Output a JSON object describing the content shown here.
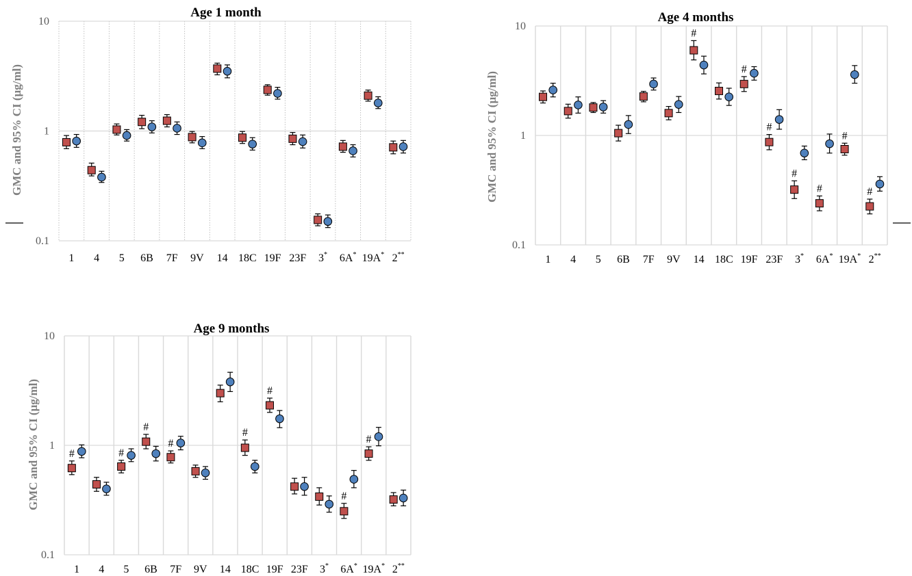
{
  "colors": {
    "red_marker": "#c0504d",
    "blue_marker": "#4f81bd",
    "grid": "#d9d9d9",
    "axis_text": "#595959",
    "ylabel": "#7f7f7f"
  },
  "chart_data": [
    {
      "type": "scatter",
      "title": "Age 1 month",
      "ylabel": "GMC and 95% CI (µg/ml)",
      "yscale": "log",
      "ylim": [
        0.1,
        10
      ],
      "yticks": [
        "0.1",
        "1",
        "10"
      ],
      "vgrid": "dotted",
      "categories": [
        "1",
        "4",
        "5",
        "6B",
        "7F",
        "9V",
        "14",
        "18C",
        "19F",
        "23F",
        "3",
        "6A",
        "19A",
        "2"
      ],
      "category_sup": [
        "",
        "",
        "",
        "",
        "",
        "",
        "",
        "",
        "",
        "",
        "*",
        "*",
        "*",
        "**"
      ],
      "series": [
        {
          "color": "red",
          "marker": "square",
          "values": [
            0.79,
            0.44,
            1.03,
            1.21,
            1.24,
            0.88,
            3.7,
            0.87,
            2.37,
            0.85,
            0.155,
            0.72,
            2.1,
            0.71
          ],
          "ci_low": [
            0.69,
            0.39,
            0.92,
            1.05,
            1.09,
            0.78,
            3.25,
            0.77,
            2.12,
            0.75,
            0.137,
            0.64,
            1.87,
            0.62
          ],
          "ci_high": [
            0.91,
            0.51,
            1.16,
            1.39,
            1.41,
            0.99,
            4.15,
            0.99,
            2.64,
            0.97,
            0.176,
            0.82,
            2.36,
            0.81
          ]
        },
        {
          "color": "blue",
          "marker": "circle",
          "values": [
            0.81,
            0.38,
            0.91,
            1.09,
            1.06,
            0.78,
            3.5,
            0.76,
            2.2,
            0.8,
            0.15,
            0.66,
            1.8,
            0.72
          ],
          "ci_low": [
            0.71,
            0.34,
            0.81,
            0.96,
            0.93,
            0.69,
            3.05,
            0.67,
            1.95,
            0.7,
            0.132,
            0.58,
            1.6,
            0.63
          ],
          "ci_high": [
            0.93,
            0.43,
            1.03,
            1.24,
            1.21,
            0.89,
            4.0,
            0.87,
            2.5,
            0.92,
            0.172,
            0.75,
            2.05,
            0.82
          ]
        }
      ],
      "annotations": []
    },
    {
      "type": "scatter",
      "title": "Age 4 months",
      "ylabel": "GMC and 95% CI (µg/ml)",
      "yscale": "log",
      "ylim": [
        0.1,
        10
      ],
      "yticks": [
        "0.1",
        "1",
        "10"
      ],
      "vgrid": "solid",
      "categories": [
        "1",
        "4",
        "5",
        "6B",
        "7F",
        "9V",
        "14",
        "18C",
        "19F",
        "23F",
        "3",
        "6A",
        "19A",
        "2"
      ],
      "category_sup": [
        "",
        "",
        "",
        "",
        "",
        "",
        "",
        "",
        "",
        "",
        "*",
        "*",
        "*",
        "**"
      ],
      "series": [
        {
          "color": "red",
          "marker": "square",
          "values": [
            2.25,
            1.67,
            1.8,
            1.05,
            2.27,
            1.6,
            6.0,
            2.55,
            2.95,
            0.87,
            0.32,
            0.24,
            0.75,
            0.225
          ],
          "ci_low": [
            1.98,
            1.44,
            1.62,
            0.89,
            2.03,
            1.39,
            4.9,
            2.15,
            2.52,
            0.74,
            0.265,
            0.205,
            0.66,
            0.192
          ],
          "ci_high": [
            2.55,
            1.93,
            2.0,
            1.24,
            2.53,
            1.84,
            7.35,
            3.02,
            3.45,
            1.02,
            0.385,
            0.28,
            0.85,
            0.262
          ]
        },
        {
          "color": "blue",
          "marker": "circle",
          "values": [
            2.6,
            1.9,
            1.82,
            1.26,
            2.95,
            1.92,
            4.4,
            2.25,
            3.7,
            1.4,
            0.69,
            0.84,
            3.6,
            0.36
          ],
          "ci_low": [
            2.25,
            1.6,
            1.6,
            1.04,
            2.6,
            1.62,
            3.65,
            1.88,
            3.2,
            1.14,
            0.6,
            0.69,
            3.0,
            0.31
          ],
          "ci_high": [
            3.0,
            2.25,
            2.08,
            1.52,
            3.35,
            2.27,
            5.3,
            2.7,
            4.25,
            1.72,
            0.8,
            1.03,
            4.35,
            0.42
          ]
        }
      ],
      "annotations": [
        {
          "category": "14",
          "text": "#"
        },
        {
          "category": "19F",
          "text": "#"
        },
        {
          "category": "23F",
          "text": "#"
        },
        {
          "category": "3",
          "text": "#"
        },
        {
          "category": "6A",
          "text": "#"
        },
        {
          "category": "19A",
          "text": "#"
        },
        {
          "category": "2",
          "text": "#"
        }
      ]
    },
    {
      "type": "scatter",
      "title": "Age 9 months",
      "ylabel": "GMC and 95% CI (µg/ml)",
      "yscale": "log",
      "ylim": [
        0.1,
        10
      ],
      "yticks": [
        "0.1",
        "1",
        "10"
      ],
      "vgrid": "solid",
      "categories": [
        "1",
        "4",
        "5",
        "6B",
        "7F",
        "9V",
        "14",
        "18C",
        "19F",
        "23F",
        "3",
        "6A",
        "19A",
        "2"
      ],
      "category_sup": [
        "",
        "",
        "",
        "",
        "",
        "",
        "",
        "",
        "",
        "",
        "*",
        "*",
        "*",
        "**"
      ],
      "series": [
        {
          "color": "red",
          "marker": "square",
          "values": [
            0.62,
            0.44,
            0.64,
            1.08,
            0.78,
            0.58,
            3.0,
            0.95,
            2.32,
            0.42,
            0.34,
            0.25,
            0.84,
            0.32
          ],
          "ci_low": [
            0.54,
            0.38,
            0.56,
            0.93,
            0.69,
            0.51,
            2.5,
            0.81,
            2.0,
            0.36,
            0.285,
            0.215,
            0.73,
            0.28
          ],
          "ci_high": [
            0.72,
            0.51,
            0.73,
            1.26,
            0.89,
            0.66,
            3.55,
            1.12,
            2.7,
            0.5,
            0.41,
            0.295,
            0.97,
            0.37
          ]
        },
        {
          "color": "blue",
          "marker": "circle",
          "values": [
            0.88,
            0.4,
            0.81,
            0.84,
            1.05,
            0.56,
            3.8,
            0.64,
            1.75,
            0.42,
            0.29,
            0.49,
            1.2,
            0.33
          ],
          "ci_low": [
            0.77,
            0.35,
            0.71,
            0.72,
            0.91,
            0.49,
            3.1,
            0.56,
            1.45,
            0.35,
            0.245,
            0.41,
            0.99,
            0.28
          ],
          "ci_high": [
            1.01,
            0.46,
            0.93,
            0.98,
            1.21,
            0.64,
            4.65,
            0.73,
            2.08,
            0.51,
            0.345,
            0.59,
            1.46,
            0.39
          ]
        }
      ],
      "annotations": [
        {
          "category": "1",
          "text": "#"
        },
        {
          "category": "5",
          "text": "#"
        },
        {
          "category": "6B",
          "text": "#"
        },
        {
          "category": "7F",
          "text": "#"
        },
        {
          "category": "18C",
          "text": "#"
        },
        {
          "category": "19F",
          "text": "#"
        },
        {
          "category": "6A",
          "text": "#"
        },
        {
          "category": "19A",
          "text": "#"
        }
      ]
    }
  ]
}
